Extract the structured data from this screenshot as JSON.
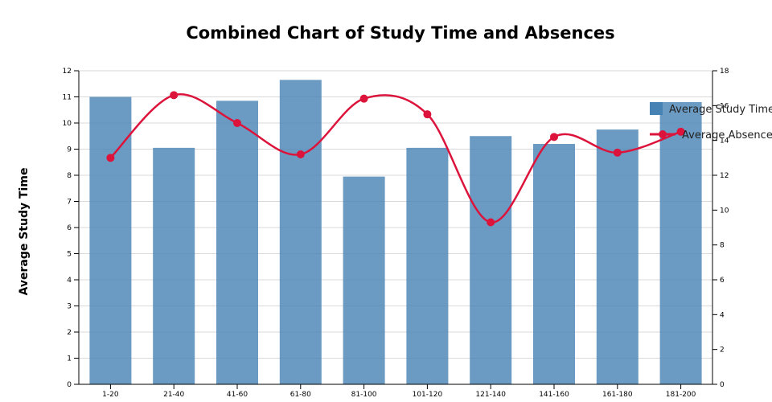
{
  "colors": {
    "bar": "#4682b4",
    "line": "#dc143c",
    "grid": "#d9d9d9",
    "background": "#ffffff"
  },
  "chart_data": {
    "type": "bar+line",
    "title": "Combined Chart of Study Time and Absences",
    "xlabel": "",
    "ylabel": "Average Study Time",
    "y2label": "",
    "categories": [
      "1-20",
      "21-40",
      "41-60",
      "61-80",
      "81-100",
      "101-120",
      "121-140",
      "141-160",
      "161-180",
      "181-200"
    ],
    "ylim": [
      0,
      12
    ],
    "y2lim": [
      0,
      18
    ],
    "yticks": [
      0,
      1,
      2,
      3,
      4,
      5,
      6,
      7,
      8,
      9,
      10,
      11,
      12
    ],
    "y2ticks": [
      0,
      2,
      4,
      6,
      8,
      10,
      12,
      14,
      16,
      18
    ],
    "grid": true,
    "legend_position": "right",
    "series": [
      {
        "name": "Average Study Time",
        "type": "bar",
        "axis": "left",
        "values": [
          11.0,
          9.05,
          10.85,
          11.65,
          7.95,
          9.05,
          9.5,
          9.2,
          9.75,
          10.8
        ]
      },
      {
        "name": "Average Absences",
        "type": "line",
        "axis": "right",
        "smooth": true,
        "values": [
          13.0,
          16.6,
          15.0,
          13.2,
          16.4,
          15.5,
          9.3,
          14.2,
          13.3,
          14.5
        ]
      }
    ]
  }
}
